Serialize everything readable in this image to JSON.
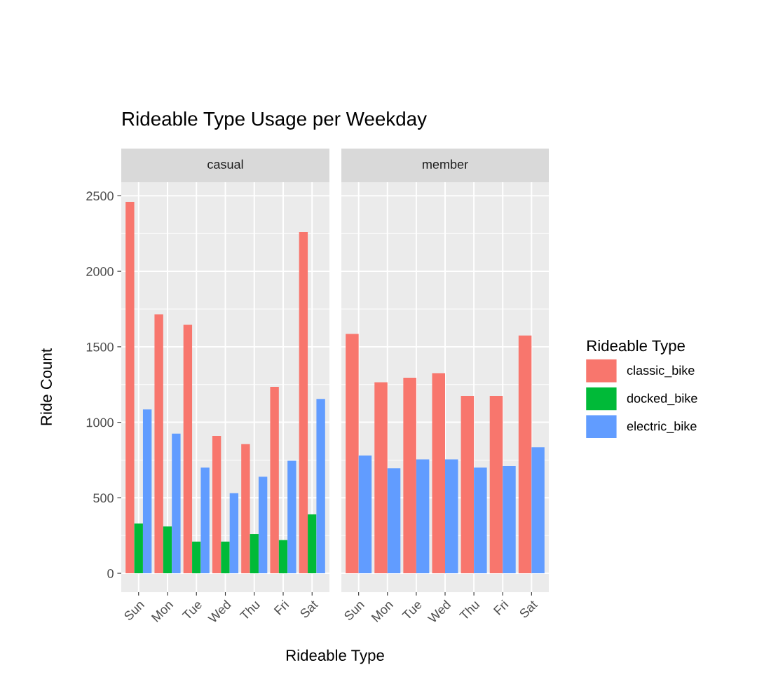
{
  "chart_data": [
    {
      "type": "bar",
      "title": "Rideable Type Usage per Weekday",
      "subtitle": "casual",
      "legend": "right",
      "legend_title": "Rideable Type",
      "xlabel": "Rideable Type",
      "ylabel": "Ride Count",
      "categories": [
        "Sun",
        "Mon",
        "Tue",
        "Wed",
        "Thu",
        "Fri",
        "Sat"
      ],
      "series": [
        {
          "name": "classic_bike",
          "color": "#f8766d",
          "values": [
            2460,
            1715,
            1645,
            910,
            855,
            1235,
            2260
          ]
        },
        {
          "name": "docked_bike",
          "color": "#00ba38",
          "values": [
            330,
            310,
            210,
            210,
            260,
            220,
            390
          ]
        },
        {
          "name": "electric_bike",
          "color": "#619cff",
          "values": [
            1085,
            925,
            700,
            530,
            640,
            745,
            1155
          ]
        }
      ],
      "ylim": [
        -125,
        2590
      ],
      "yticks": [
        0,
        500,
        1000,
        1500,
        2000,
        2500
      ],
      "grid": true
    },
    {
      "type": "bar",
      "subtitle": "member",
      "tick_labels": "x",
      "categories": [
        "Sun",
        "Mon",
        "Tue",
        "Wed",
        "Thu",
        "Fri",
        "Sat"
      ],
      "series": [
        {
          "color": "#f8766d",
          "values": [
            1585,
            1265,
            1295,
            1325,
            1175,
            1175,
            1575
          ]
        },
        {
          "color": "#619cff",
          "values": [
            780,
            695,
            755,
            755,
            700,
            710,
            835
          ]
        }
      ],
      "ylim": [
        -125,
        2590
      ],
      "yticks": [
        0,
        500,
        1000,
        1500,
        2000,
        2500
      ],
      "grid": true
    }
  ]
}
